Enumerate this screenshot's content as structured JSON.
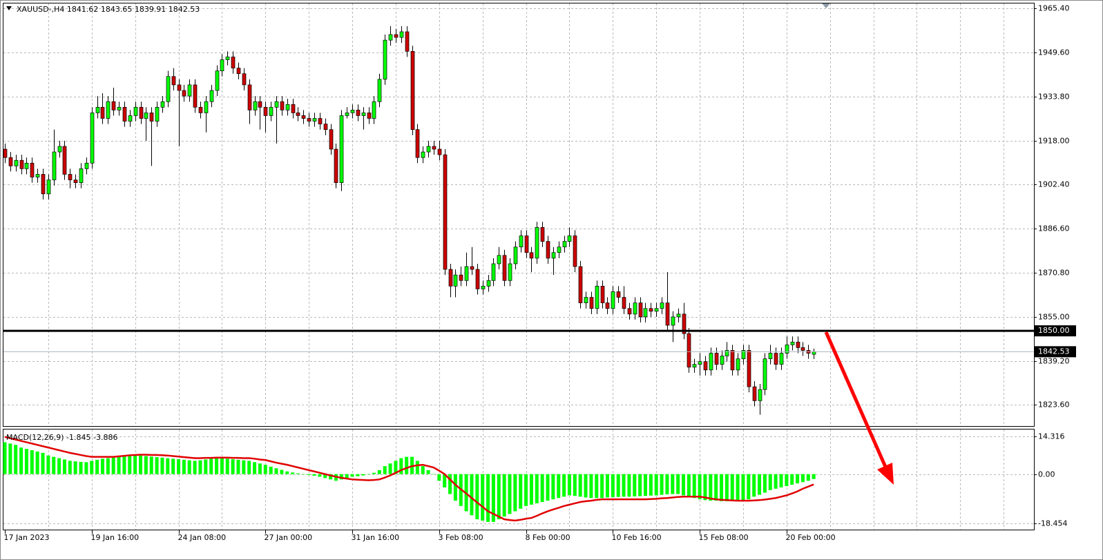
{
  "chart_data": [
    {
      "type": "candlestick",
      "title": "XAUUSD-,H4  1841.62 1843.65 1839.91 1842.53",
      "up_color": "#00ff00",
      "down_color": "#cc0000",
      "grid": true,
      "ylim": [
        1815.94,
        1967.13
      ],
      "yticks": [
        {
          "value": 1965.4,
          "label": "1965.40"
        },
        {
          "value": 1949.6,
          "label": "1949.60"
        },
        {
          "value": 1933.8,
          "label": "1933.80"
        },
        {
          "value": 1918,
          "label": "1918.00"
        },
        {
          "value": 1902.4,
          "label": "1902.40"
        },
        {
          "value": 1886.6,
          "label": "1886.60"
        },
        {
          "value": 1870.8,
          "label": "1870.80"
        },
        {
          "value": 1855,
          "label": "1855.00"
        },
        {
          "value": 1839.2,
          "label": "1839.20"
        },
        {
          "value": 1823.6,
          "label": "1823.60"
        }
      ],
      "xticks": [
        {
          "value": 0,
          "label": "17 Jan 2023"
        },
        {
          "value": 16,
          "label": "19 Jan 16:00"
        },
        {
          "value": 32,
          "label": "24 Jan 08:00"
        },
        {
          "value": 48,
          "label": "27 Jan 00:00"
        },
        {
          "value": 64,
          "label": "31 Jan 16:00"
        },
        {
          "value": 80,
          "label": "3 Feb 08:00"
        },
        {
          "value": 96,
          "label": "8 Feb 00:00"
        },
        {
          "value": 112,
          "label": "10 Feb 16:00"
        },
        {
          "value": 128,
          "label": "15 Feb 08:00"
        },
        {
          "value": 144,
          "label": "20 Feb 00:00"
        }
      ],
      "hlines": [
        {
          "value": 1850,
          "label": "1850.00"
        }
      ],
      "last_price": {
        "value": 1842.53,
        "label": "1842.53"
      },
      "candles": [
        [
          1915,
          1917,
          1910,
          1912
        ],
        [
          1912,
          1914,
          1907,
          1909
        ],
        [
          1909,
          1913,
          1907,
          1911
        ],
        [
          1911,
          1913,
          1906,
          1908
        ],
        [
          1908,
          1912,
          1906,
          1910
        ],
        [
          1910,
          1912,
          1903,
          1905
        ],
        [
          1905,
          1908,
          1903,
          1906
        ],
        [
          1906,
          1908,
          1897,
          1899
        ],
        [
          1899,
          1906,
          1897,
          1904
        ],
        [
          1904,
          1922,
          1902,
          1914
        ],
        [
          1914,
          1918,
          1912,
          1916
        ],
        [
          1916,
          1918,
          1904,
          1906
        ],
        [
          1906,
          1908,
          1901,
          1904
        ],
        [
          1904,
          1906,
          1901,
          1903
        ],
        [
          1903,
          1910,
          1901,
          1908
        ],
        [
          1908,
          1912,
          1906,
          1910
        ],
        [
          1910,
          1930,
          1908,
          1928
        ],
        [
          1928,
          1934,
          1926,
          1930
        ],
        [
          1930,
          1935,
          1924,
          1926
        ],
        [
          1926,
          1934,
          1924,
          1932
        ],
        [
          1932,
          1937,
          1927,
          1929
        ],
        [
          1929,
          1932,
          1927,
          1930
        ],
        [
          1930,
          1932,
          1923,
          1925
        ],
        [
          1925,
          1929,
          1923,
          1927
        ],
        [
          1927,
          1932,
          1925,
          1930
        ],
        [
          1930,
          1932,
          1924,
          1926
        ],
        [
          1926,
          1930,
          1918,
          1928
        ],
        [
          1928,
          1930,
          1909,
          1925
        ],
        [
          1925,
          1932,
          1923,
          1930
        ],
        [
          1930,
          1934,
          1928,
          1932
        ],
        [
          1932,
          1943,
          1930,
          1941
        ],
        [
          1941,
          1944,
          1936,
          1938
        ],
        [
          1938,
          1940,
          1916,
          1936
        ],
        [
          1936,
          1938,
          1932,
          1934
        ],
        [
          1934,
          1940,
          1932,
          1938
        ],
        [
          1938,
          1940,
          1928,
          1930
        ],
        [
          1930,
          1932,
          1926,
          1928
        ],
        [
          1928,
          1934,
          1921,
          1932
        ],
        [
          1932,
          1938,
          1930,
          1936
        ],
        [
          1936,
          1945,
          1934,
          1943
        ],
        [
          1943,
          1949,
          1941,
          1947
        ],
        [
          1947,
          1950,
          1945,
          1948
        ],
        [
          1948,
          1950,
          1942,
          1944
        ],
        [
          1944,
          1946,
          1940,
          1942
        ],
        [
          1942,
          1944,
          1936,
          1938
        ],
        [
          1938,
          1940,
          1924,
          1929
        ],
        [
          1929,
          1934,
          1927,
          1932
        ],
        [
          1932,
          1934,
          1922,
          1930
        ],
        [
          1930,
          1932,
          1921,
          1927
        ],
        [
          1927,
          1932,
          1925,
          1930
        ],
        [
          1930,
          1934,
          1917,
          1932
        ],
        [
          1932,
          1934,
          1927,
          1929
        ],
        [
          1929,
          1933,
          1927,
          1931
        ],
        [
          1931,
          1933,
          1926,
          1928
        ],
        [
          1928,
          1930,
          1925,
          1927
        ],
        [
          1927,
          1929,
          1924,
          1926
        ],
        [
          1926,
          1928,
          1923,
          1925
        ],
        [
          1925,
          1928,
          1923,
          1926
        ],
        [
          1926,
          1928,
          1922,
          1924
        ],
        [
          1924,
          1926,
          1920,
          1922
        ],
        [
          1922,
          1924,
          1913,
          1915
        ],
        [
          1915,
          1917,
          1901,
          1903
        ],
        [
          1903,
          1929,
          1900,
          1927
        ],
        [
          1927,
          1930,
          1926,
          1928
        ],
        [
          1928,
          1931,
          1926,
          1929
        ],
        [
          1929,
          1931,
          1925,
          1927
        ],
        [
          1927,
          1930,
          1922,
          1928
        ],
        [
          1928,
          1930,
          1924,
          1926
        ],
        [
          1926,
          1934,
          1924,
          1932
        ],
        [
          1932,
          1942,
          1930,
          1940
        ],
        [
          1940,
          1956,
          1938,
          1954
        ],
        [
          1954,
          1959,
          1952,
          1956
        ],
        [
          1956,
          1958,
          1953,
          1955
        ],
        [
          1955,
          1959,
          1953,
          1957
        ],
        [
          1957,
          1959,
          1948,
          1950
        ],
        [
          1950,
          1952,
          1920,
          1922
        ],
        [
          1922,
          1924,
          1910,
          1912
        ],
        [
          1912,
          1916,
          1910,
          1914
        ],
        [
          1914,
          1918,
          1912,
          1916
        ],
        [
          1916,
          1918,
          1913,
          1915
        ],
        [
          1915,
          1918,
          1911,
          1913
        ],
        [
          1913,
          1915,
          1870,
          1872
        ],
        [
          1872,
          1874,
          1862,
          1866
        ],
        [
          1866,
          1872,
          1862,
          1870
        ],
        [
          1870,
          1873,
          1866,
          1868
        ],
        [
          1868,
          1878,
          1866,
          1873
        ],
        [
          1873,
          1880,
          1870,
          1872
        ],
        [
          1872,
          1874,
          1863,
          1865
        ],
        [
          1865,
          1868,
          1863,
          1866
        ],
        [
          1866,
          1870,
          1864,
          1868
        ],
        [
          1868,
          1876,
          1866,
          1874
        ],
        [
          1874,
          1880,
          1872,
          1877
        ],
        [
          1877,
          1879,
          1866,
          1868
        ],
        [
          1868,
          1876,
          1866,
          1874
        ],
        [
          1874,
          1882,
          1872,
          1880
        ],
        [
          1880,
          1886,
          1878,
          1884
        ],
        [
          1884,
          1886,
          1876,
          1878
        ],
        [
          1878,
          1880,
          1871,
          1876
        ],
        [
          1876,
          1889,
          1874,
          1887
        ],
        [
          1887,
          1889,
          1880,
          1882
        ],
        [
          1882,
          1884,
          1874,
          1876
        ],
        [
          1876,
          1880,
          1870,
          1878
        ],
        [
          1878,
          1882,
          1876,
          1880
        ],
        [
          1880,
          1884,
          1878,
          1882
        ],
        [
          1882,
          1887,
          1880,
          1884
        ],
        [
          1884,
          1886,
          1871,
          1873
        ],
        [
          1873,
          1875,
          1858,
          1860
        ],
        [
          1860,
          1864,
          1858,
          1862
        ],
        [
          1862,
          1864,
          1856,
          1858
        ],
        [
          1858,
          1868,
          1856,
          1866
        ],
        [
          1866,
          1868,
          1858,
          1860
        ],
        [
          1860,
          1862,
          1856,
          1858
        ],
        [
          1858,
          1866,
          1856,
          1864
        ],
        [
          1864,
          1866,
          1860,
          1862
        ],
        [
          1862,
          1866,
          1856,
          1858
        ],
        [
          1858,
          1860,
          1854,
          1856
        ],
        [
          1856,
          1862,
          1854,
          1860
        ],
        [
          1860,
          1862,
          1853,
          1855
        ],
        [
          1855,
          1860,
          1853,
          1858
        ],
        [
          1858,
          1860,
          1855,
          1857
        ],
        [
          1857,
          1860,
          1855,
          1858
        ],
        [
          1858,
          1862,
          1856,
          1860
        ],
        [
          1860,
          1871,
          1850,
          1852
        ],
        [
          1852,
          1857,
          1846,
          1855
        ],
        [
          1855,
          1858,
          1853,
          1856
        ],
        [
          1856,
          1860,
          1847,
          1849
        ],
        [
          1849,
          1851,
          1835,
          1837
        ],
        [
          1837,
          1840,
          1835,
          1838
        ],
        [
          1838,
          1842,
          1834,
          1839
        ],
        [
          1839,
          1841,
          1834,
          1836
        ],
        [
          1836,
          1844,
          1834,
          1842
        ],
        [
          1842,
          1844,
          1836,
          1838
        ],
        [
          1838,
          1843,
          1836,
          1841
        ],
        [
          1841,
          1846,
          1839,
          1843
        ],
        [
          1843,
          1845,
          1834,
          1836
        ],
        [
          1836,
          1842,
          1834,
          1840
        ],
        [
          1840,
          1845,
          1838,
          1843
        ],
        [
          1843,
          1845,
          1828,
          1830
        ],
        [
          1830,
          1832,
          1823,
          1825
        ],
        [
          1825,
          1831,
          1820,
          1829
        ],
        [
          1829,
          1842,
          1827,
          1840
        ],
        [
          1840,
          1845,
          1838,
          1842
        ],
        [
          1842,
          1844,
          1836,
          1838
        ],
        [
          1838,
          1844,
          1836,
          1842
        ],
        [
          1842,
          1848,
          1840,
          1845
        ],
        [
          1845,
          1848,
          1843,
          1846
        ],
        [
          1846,
          1848,
          1842,
          1844
        ],
        [
          1844,
          1846,
          1841,
          1843
        ],
        [
          1843,
          1845,
          1840,
          1842
        ],
        [
          1841.62,
          1843.65,
          1839.91,
          1842.53
        ]
      ]
    },
    {
      "type": "macd",
      "title": "MACD(12,26,9) -1.845 -3.886",
      "histogram_color": "#00ff00",
      "signal_color": "#e00000",
      "ylim": [
        -20.9,
        16.8
      ],
      "yticks": [
        14.316,
        {
          "value": 0,
          "label": "0.00"
        },
        -18.454
      ],
      "histogram": [
        12,
        11.5,
        11,
        10,
        9.5,
        9,
        8.5,
        8,
        7,
        6.5,
        6,
        5.5,
        5,
        4.8,
        4.6,
        4.5,
        5,
        5.4,
        5.8,
        6,
        6.2,
        6.5,
        6.7,
        6.8,
        7,
        7,
        6.8,
        6.6,
        6.4,
        6.2,
        6,
        5.8,
        5.6,
        5.4,
        5.2,
        5,
        5.2,
        5.5,
        5.8,
        6,
        6,
        5.8,
        5.6,
        5.4,
        5.2,
        5,
        4.5,
        4,
        3.5,
        2.8,
        2.2,
        1.6,
        1,
        0.6,
        0.3,
        0,
        -0.3,
        -0.6,
        -1,
        -1.5,
        -2,
        -2.5,
        -2,
        -1.5,
        -1,
        -0.8,
        -0.5,
        0,
        0.5,
        1.5,
        3,
        4,
        5,
        6,
        6.5,
        6.5,
        5,
        3,
        1.5,
        0,
        -2.5,
        -5,
        -7.5,
        -10,
        -12,
        -14,
        -15.5,
        -17,
        -17.5,
        -18,
        -18,
        -17,
        -16,
        -15,
        -14,
        -13,
        -12,
        -11.5,
        -11,
        -10.5,
        -10,
        -9.5,
        -9,
        -8.5,
        -8,
        -8.2,
        -8.5,
        -8.8,
        -9,
        -9,
        -9,
        -8.8,
        -8.7,
        -8.6,
        -8.5,
        -8.5,
        -8.4,
        -8.3,
        -8.2,
        -8.1,
        -8,
        -7.8,
        -7.6,
        -7.5,
        -7.5,
        -8,
        -8.5,
        -9,
        -9.5,
        -9.8,
        -10,
        -10,
        -10.2,
        -10.2,
        -10,
        -10,
        -9.8,
        -9.5,
        -8.5,
        -7.8,
        -7,
        -6,
        -5.5,
        -5,
        -4.5,
        -4,
        -3.5,
        -3,
        -2.5,
        -1.845
      ],
      "signal": [
        14,
        13.5,
        13,
        12.5,
        12,
        11.5,
        11,
        10.5,
        10,
        9.5,
        9,
        8.5,
        8,
        7.6,
        7.2,
        6.8,
        6.5,
        6.5,
        6.5,
        6.5,
        6.5,
        6.7,
        6.9,
        7.1,
        7.2,
        7.3,
        7.3,
        7.2,
        7.2,
        7.1,
        7,
        6.8,
        6.6,
        6.4,
        6.2,
        6,
        6,
        6.1,
        6.1,
        6.2,
        6.2,
        6.2,
        6.1,
        6.1,
        6,
        6,
        5.8,
        5.5,
        5.3,
        4.8,
        4.3,
        3.9,
        3.5,
        3,
        2.5,
        2,
        1.5,
        1,
        0.5,
        0,
        -0.5,
        -1,
        -1.4,
        -1.7,
        -2,
        -2.1,
        -2.2,
        -2.3,
        -2.2,
        -2,
        -1.3,
        -0.5,
        0.5,
        1.5,
        2.3,
        3,
        3.3,
        3.5,
        3,
        2.5,
        1.3,
        0,
        -2,
        -4,
        -5.7,
        -7.3,
        -9,
        -10.7,
        -12.3,
        -14,
        -15,
        -16,
        -17,
        -17.3,
        -17.5,
        -17.2,
        -16.8,
        -16.5,
        -15.7,
        -14.8,
        -14,
        -13.3,
        -12.7,
        -12,
        -11.5,
        -11,
        -10.5,
        -10.2,
        -10,
        -9.7,
        -9.5,
        -9.5,
        -9.5,
        -9.5,
        -9.5,
        -9.5,
        -9.5,
        -9.5,
        -9.5,
        -9.4,
        -9.3,
        -9.1,
        -9,
        -8.8,
        -8.6,
        -8.5,
        -8.5,
        -8.5,
        -8.5,
        -8.8,
        -9.2,
        -9.5,
        -9.7,
        -9.8,
        -9.9,
        -10,
        -10,
        -10,
        -9.9,
        -9.8,
        -9.6,
        -9.3,
        -9,
        -8.5,
        -8,
        -7.3,
        -6.5,
        -5.5,
        -4.7,
        -3.886
      ]
    }
  ]
}
